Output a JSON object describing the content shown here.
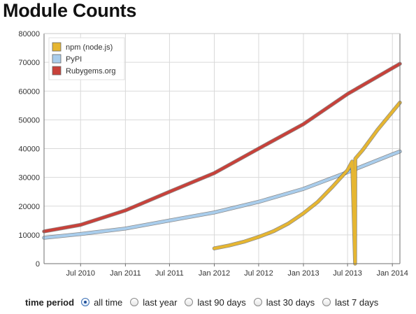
{
  "page": {
    "title": "Module Counts"
  },
  "colors": {
    "npm": "#e6b631",
    "pypi": "#a9cdec",
    "rubygems": "#c8413a",
    "grid": "#d9d9d9",
    "axis": "#6f6f6f"
  },
  "chart_data": {
    "type": "line",
    "title": "",
    "xlabel": "",
    "ylabel": "",
    "x_type": "date",
    "xlim": [
      "2010-02-01",
      "2014-02-01"
    ],
    "ylim": [
      0,
      80000
    ],
    "y_ticks": [
      0,
      10000,
      20000,
      30000,
      40000,
      50000,
      60000,
      70000,
      80000
    ],
    "x_ticks": [
      {
        "date": "2010-07-01",
        "label": "Jul 2010"
      },
      {
        "date": "2011-01-01",
        "label": "Jan 2011"
      },
      {
        "date": "2011-07-01",
        "label": "Jul 2011"
      },
      {
        "date": "2012-01-01",
        "label": "Jan 2012"
      },
      {
        "date": "2012-07-01",
        "label": "Jul 2012"
      },
      {
        "date": "2013-01-01",
        "label": "Jan 2013"
      },
      {
        "date": "2013-07-01",
        "label": "Jul 2013"
      },
      {
        "date": "2014-01-01",
        "label": "Jan 2014"
      }
    ],
    "grid": true,
    "legend_position": "top-left",
    "series": [
      {
        "name": "npm (node.js)",
        "color": "#e6b631",
        "points": [
          [
            "2012-01-01",
            5300
          ],
          [
            "2012-03-01",
            6300
          ],
          [
            "2012-05-01",
            7600
          ],
          [
            "2012-07-01",
            9300
          ],
          [
            "2012-09-01",
            11300
          ],
          [
            "2012-11-01",
            14000
          ],
          [
            "2013-01-01",
            17500
          ],
          [
            "2013-03-01",
            21500
          ],
          [
            "2013-05-01",
            26800
          ],
          [
            "2013-07-01",
            32500
          ],
          [
            "2013-07-20",
            35500
          ],
          [
            "2013-08-01",
            0
          ],
          [
            "2013-08-02",
            36500
          ],
          [
            "2013-09-01",
            39500
          ],
          [
            "2013-11-01",
            46500
          ],
          [
            "2014-02-01",
            56000
          ]
        ]
      },
      {
        "name": "PyPI",
        "color": "#a9cdec",
        "points": [
          [
            "2010-02-01",
            9000
          ],
          [
            "2010-07-01",
            10300
          ],
          [
            "2011-01-01",
            12200
          ],
          [
            "2011-07-01",
            15000
          ],
          [
            "2012-01-01",
            17800
          ],
          [
            "2012-07-01",
            21500
          ],
          [
            "2013-01-01",
            26000
          ],
          [
            "2013-07-01",
            31800
          ],
          [
            "2014-01-01",
            38000
          ],
          [
            "2014-02-01",
            39000
          ]
        ]
      },
      {
        "name": "Rubygems.org",
        "color": "#c8413a",
        "points": [
          [
            "2010-02-01",
            11200
          ],
          [
            "2010-07-01",
            13500
          ],
          [
            "2011-01-01",
            18500
          ],
          [
            "2011-07-01",
            25000
          ],
          [
            "2012-01-01",
            31500
          ],
          [
            "2012-07-01",
            40000
          ],
          [
            "2013-01-01",
            48500
          ],
          [
            "2013-07-01",
            59000
          ],
          [
            "2014-01-01",
            68000
          ],
          [
            "2014-02-01",
            69500
          ]
        ]
      }
    ]
  },
  "time_period": {
    "label": "time period",
    "options": [
      {
        "label": "all time",
        "checked": true
      },
      {
        "label": "last year",
        "checked": false
      },
      {
        "label": "last 90 days",
        "checked": false
      },
      {
        "label": "last 30 days",
        "checked": false
      },
      {
        "label": "last 7 days",
        "checked": false
      }
    ]
  }
}
